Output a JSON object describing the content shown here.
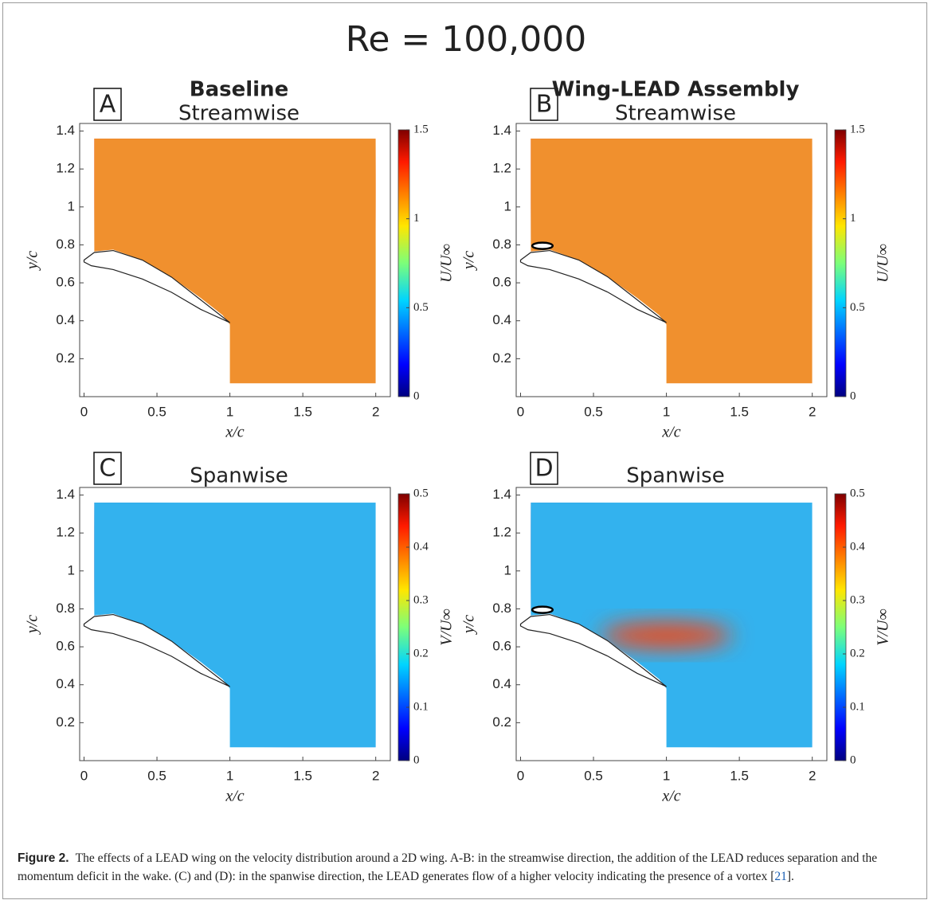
{
  "figure": {
    "title": "Re = 100,000",
    "panels": [
      {
        "letter": "A",
        "heading": "Baseline",
        "subheading": "Streamwise",
        "xlabel": "x/c",
        "ylabel": "y/c",
        "xlim": [
          -0.03,
          2.1
        ],
        "ylim": [
          0,
          1.44
        ],
        "xticks": [
          0,
          0.5,
          1,
          1.5,
          2
        ],
        "yticks": [
          0.2,
          0.4,
          0.6,
          0.8,
          1,
          1.2,
          1.4
        ],
        "colorbar_label": "U/U∞",
        "clim": [
          0,
          1.5
        ],
        "cticks": [
          0,
          0.5,
          1,
          1.5
        ]
      },
      {
        "letter": "B",
        "heading": "Wing-LEAD Assembly",
        "subheading": "Streamwise",
        "xlabel": "x/c",
        "ylabel": "y/c",
        "xlim": [
          -0.03,
          2.1
        ],
        "ylim": [
          0,
          1.44
        ],
        "xticks": [
          0,
          0.5,
          1,
          1.5,
          2
        ],
        "yticks": [
          0.2,
          0.4,
          0.6,
          0.8,
          1,
          1.2,
          1.4
        ],
        "colorbar_label": "U/U∞",
        "clim": [
          0,
          1.5
        ],
        "cticks": [
          0,
          0.5,
          1,
          1.5
        ]
      },
      {
        "letter": "C",
        "heading": "Spanwise",
        "xlabel": "x/c",
        "ylabel": "y/c",
        "xlim": [
          -0.03,
          2.1
        ],
        "ylim": [
          0,
          1.44
        ],
        "xticks": [
          0,
          0.5,
          1,
          1.5,
          2
        ],
        "yticks": [
          0.2,
          0.4,
          0.6,
          0.8,
          1,
          1.2,
          1.4
        ],
        "colorbar_label": "V/U∞",
        "clim": [
          0,
          0.5
        ],
        "cticks": [
          0,
          0.1,
          0.2,
          0.3,
          0.4,
          0.5
        ]
      },
      {
        "letter": "D",
        "heading": "Spanwise",
        "xlabel": "x/c",
        "ylabel": "y/c",
        "xlim": [
          -0.03,
          2.1
        ],
        "ylim": [
          0,
          1.44
        ],
        "xticks": [
          0,
          0.5,
          1,
          1.5,
          2
        ],
        "yticks": [
          0.2,
          0.4,
          0.6,
          0.8,
          1,
          1.2,
          1.4
        ],
        "colorbar_label": "V/U∞",
        "clim": [
          0,
          0.5
        ],
        "cticks": [
          0,
          0.1,
          0.2,
          0.3,
          0.4,
          0.5
        ]
      }
    ]
  },
  "caption": {
    "label": "Figure 2.",
    "text": "The effects of a LEAD wing on the velocity distribution around a 2D wing. A-B: in the streamwise direction, the addition of the LEAD reduces separation and the momentum deficit in the wake. (C) and (D): in the spanwise direction, the LEAD generates flow of a higher velocity indicating the presence of a vortex [",
    "ref": "21",
    "end": "]."
  }
}
